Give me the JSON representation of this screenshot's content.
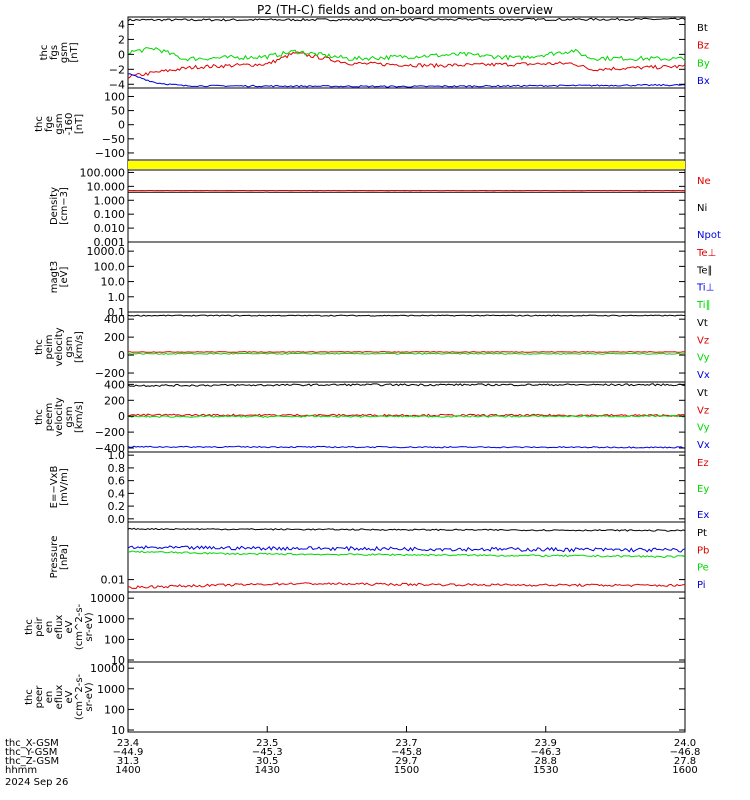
{
  "title": "P2 (TH-C) fields and on-board moments overview",
  "colors": {
    "black": "#000000",
    "red": "#e00000",
    "green": "#00d800",
    "blue": "#0000e0",
    "yellow": "#ffff00"
  },
  "chart_data": [
    {
      "type": "line",
      "ylabel": [
        "thc",
        "fgs",
        "gsm",
        "[nT]"
      ],
      "ylim": [
        -4.5,
        5
      ],
      "ticks": [
        "4",
        "2",
        "0",
        "−2",
        "−4"
      ],
      "tick_values": [
        4,
        2,
        0,
        -2,
        -4
      ],
      "legend": [
        {
          "name": "Bt",
          "color": "black"
        },
        {
          "name": "Bz",
          "color": "red"
        },
        {
          "name": "By",
          "color": "green"
        },
        {
          "name": "Bx",
          "color": "blue"
        }
      ],
      "series": [
        {
          "name": "Bt",
          "color": "black",
          "base": 4.7,
          "noise": 0.15,
          "points": [
            [
              0,
              4.6
            ],
            [
              1,
              4.7
            ]
          ]
        },
        {
          "name": "Bz",
          "color": "red",
          "base": -1.6,
          "noise": 0.25,
          "points": [
            [
              0,
              -3.0
            ],
            [
              0.06,
              -2.3
            ],
            [
              0.12,
              -1.7
            ],
            [
              0.25,
              -1.3
            ],
            [
              0.3,
              0.2
            ],
            [
              0.4,
              -1.2
            ],
            [
              0.55,
              -1.5
            ],
            [
              0.8,
              -1.2
            ],
            [
              0.83,
              -2.0
            ],
            [
              1,
              -1.6
            ]
          ]
        },
        {
          "name": "By",
          "color": "green",
          "base": -0.5,
          "noise": 0.3,
          "points": [
            [
              0,
              0.3
            ],
            [
              0.05,
              0.8
            ],
            [
              0.1,
              -0.6
            ],
            [
              0.25,
              -0.3
            ],
            [
              0.3,
              0.4
            ],
            [
              0.4,
              -0.6
            ],
            [
              0.6,
              0.0
            ],
            [
              0.7,
              -0.5
            ],
            [
              0.8,
              0.5
            ],
            [
              0.83,
              -0.5
            ],
            [
              1,
              -0.6
            ]
          ]
        },
        {
          "name": "Bx",
          "color": "blue",
          "base": -4.1,
          "noise": 0.1,
          "points": [
            [
              0,
              -2.6
            ],
            [
              0.05,
              -3.8
            ],
            [
              0.1,
              -4.2
            ],
            [
              0.5,
              -4.3
            ],
            [
              1,
              -4.1
            ]
          ]
        }
      ]
    },
    {
      "type": "line",
      "ylabel": [
        "thc",
        "fge",
        "gsm",
        "-160",
        "[nT]"
      ],
      "ylim": [
        -125,
        130
      ],
      "ticks": [
        "100",
        "50",
        "0",
        "−50",
        "−100"
      ],
      "tick_values": [
        100,
        50,
        0,
        -50,
        -100
      ],
      "legend": [],
      "series": []
    },
    {
      "type": "area",
      "ylabel": [],
      "ylim": [
        0,
        1
      ],
      "ticks": [],
      "tick_values": [],
      "legend": [],
      "series": [
        {
          "name": "bar",
          "color": "yellow",
          "base": 0.5,
          "noise": 0,
          "points": [
            [
              0,
              0.5
            ],
            [
              1,
              0.5
            ]
          ]
        }
      ]
    },
    {
      "type": "line",
      "log": true,
      "ylabel": [
        "Density",
        "[cm−3]"
      ],
      "ylim": [
        0.001,
        150
      ],
      "ticks": [
        "100.000",
        "10.000",
        "1.000",
        "0.100",
        "0.010",
        "0.001"
      ],
      "tick_values": [
        100,
        10,
        1,
        0.1,
        0.01,
        0.001
      ],
      "legend": [
        {
          "name": "Ne",
          "color": "red"
        },
        {
          "name": "Ni",
          "color": "black"
        },
        {
          "name": "Npot",
          "color": "blue"
        }
      ],
      "series": [
        {
          "name": "Ne",
          "color": "red",
          "base": 5.0,
          "noise": 0.05,
          "points": [
            [
              0,
              5.0
            ],
            [
              1,
              5.0
            ]
          ]
        },
        {
          "name": "Ni",
          "color": "black",
          "base": 3.8,
          "noise": 0.04,
          "points": [
            [
              0,
              3.8
            ],
            [
              1,
              3.8
            ]
          ]
        }
      ]
    },
    {
      "type": "line",
      "log": true,
      "ylabel": [
        "magt3",
        "[eV]"
      ],
      "ylim": [
        0.1,
        4000
      ],
      "ticks": [
        "1000.0",
        "100.0",
        "10.0",
        "1.0",
        "0.1"
      ],
      "tick_values": [
        1000,
        100,
        10,
        1,
        0.1
      ],
      "legend": [
        {
          "name": "Te⊥",
          "color": "red"
        },
        {
          "name": "Te∥",
          "color": "black"
        },
        {
          "name": "Ti⊥",
          "color": "blue"
        },
        {
          "name": "Ti∥",
          "color": "green"
        }
      ],
      "series": []
    },
    {
      "type": "line",
      "ylabel": [
        "thc",
        "peim",
        "velocity",
        "gsm",
        "[km/s]"
      ],
      "ylim": [
        -300,
        480
      ],
      "ticks": [
        "400",
        "200",
        "0",
        "−200"
      ],
      "tick_values": [
        400,
        200,
        0,
        -200
      ],
      "legend": [
        {
          "name": "Vt",
          "color": "black"
        },
        {
          "name": "Vz",
          "color": "red"
        },
        {
          "name": "Vy",
          "color": "green"
        },
        {
          "name": "Vx",
          "color": "blue"
        }
      ],
      "series": [
        {
          "name": "Vt",
          "color": "black",
          "base": 440,
          "noise": 6,
          "points": [
            [
              0,
              440
            ],
            [
              1,
              440
            ]
          ]
        },
        {
          "name": "Vz",
          "color": "red",
          "base": 35,
          "noise": 4,
          "points": [
            [
              0,
              35
            ],
            [
              1,
              35
            ]
          ]
        },
        {
          "name": "Vy",
          "color": "green",
          "base": 15,
          "noise": 6,
          "points": [
            [
              0,
              15
            ],
            [
              1,
              15
            ]
          ]
        }
      ]
    },
    {
      "type": "line",
      "ylabel": [
        "thc",
        "peem",
        "velocity",
        "gsm",
        "[km/s]"
      ],
      "ylim": [
        -450,
        430
      ],
      "ticks": [
        "400",
        "200",
        "0",
        "−200",
        "−400"
      ],
      "tick_values": [
        400,
        200,
        0,
        -200,
        -400
      ],
      "legend": [
        {
          "name": "Vt",
          "color": "black"
        },
        {
          "name": "Vz",
          "color": "red"
        },
        {
          "name": "Vy",
          "color": "green"
        },
        {
          "name": "Vx",
          "color": "blue"
        }
      ],
      "series": [
        {
          "name": "Vt",
          "color": "black",
          "base": 390,
          "noise": 12,
          "points": [
            [
              0,
              385
            ],
            [
              0.4,
              395
            ],
            [
              1,
              395
            ]
          ]
        },
        {
          "name": "Vx",
          "color": "blue",
          "base": -390,
          "noise": 8,
          "points": [
            [
              0,
              -385
            ],
            [
              1,
              -392
            ]
          ]
        },
        {
          "name": "Vz",
          "color": "red",
          "base": 15,
          "noise": 12,
          "points": [
            [
              0,
              15
            ],
            [
              1,
              10
            ]
          ]
        },
        {
          "name": "Vy",
          "color": "green",
          "base": 0,
          "noise": 10,
          "points": [
            [
              0,
              -5
            ],
            [
              1,
              0
            ]
          ]
        }
      ]
    },
    {
      "type": "line",
      "ylabel": [
        "E=−VxB",
        "[mV/m]"
      ],
      "ylim": [
        -0.05,
        1.05
      ],
      "ticks": [
        "1.0",
        "0.8",
        "0.6",
        "0.4",
        "0.2",
        "0.0"
      ],
      "tick_values": [
        1.0,
        0.8,
        0.6,
        0.4,
        0.2,
        0.0
      ],
      "legend": [
        {
          "name": "Ez",
          "color": "red"
        },
        {
          "name": "Ey",
          "color": "green"
        },
        {
          "name": "Ex",
          "color": "blue"
        }
      ],
      "series": []
    },
    {
      "type": "line",
      "log": true,
      "ylabel": [
        "Pressure",
        "[nPa]"
      ],
      "ylim": [
        0.005,
        0.25
      ],
      "ticks": [
        "0.01"
      ],
      "tick_values": [
        0.01
      ],
      "legend": [
        {
          "name": "Pt",
          "color": "black"
        },
        {
          "name": "Pb",
          "color": "red"
        },
        {
          "name": "Pe",
          "color": "green"
        },
        {
          "name": "Pi",
          "color": "blue"
        }
      ],
      "series": [
        {
          "name": "Pt",
          "color": "black",
          "base": 0.16,
          "noise": 0.006,
          "points": [
            [
              0,
              0.17
            ],
            [
              1,
              0.155
            ]
          ]
        },
        {
          "name": "Pi",
          "color": "blue",
          "base": 0.055,
          "noise": 0.006,
          "points": [
            [
              0,
              0.06
            ],
            [
              1,
              0.052
            ]
          ]
        },
        {
          "name": "Pe",
          "color": "green",
          "base": 0.043,
          "noise": 0.002,
          "points": [
            [
              0,
              0.048
            ],
            [
              0.2,
              0.042
            ],
            [
              0.5,
              0.04
            ],
            [
              1,
              0.036
            ]
          ]
        },
        {
          "name": "Pb",
          "color": "red",
          "base": 0.0075,
          "noise": 0.0005,
          "points": [
            [
              0,
              0.0065
            ],
            [
              0.3,
              0.008
            ],
            [
              0.6,
              0.0075
            ],
            [
              1,
              0.0072
            ]
          ]
        }
      ]
    },
    {
      "type": "line",
      "log": true,
      "ylabel": [
        "thc",
        "peir",
        "en",
        "eflux",
        "eV",
        "(cm^2-s-",
        "sr-eV)"
      ],
      "ylim": [
        8,
        20000
      ],
      "ticks": [
        "10000",
        "1000",
        "100",
        "10"
      ],
      "tick_values": [
        10000,
        1000,
        100,
        10
      ],
      "legend": [],
      "series": []
    },
    {
      "type": "line",
      "log": true,
      "ylabel": [
        "thc",
        "peer",
        "en",
        "eflux",
        "eV",
        "(cm^2-s-",
        "sr-eV)"
      ],
      "ylim": [
        8,
        20000
      ],
      "ticks": [
        "10000",
        "1000",
        "100",
        "10"
      ],
      "tick_values": [
        10000,
        1000,
        100,
        10
      ],
      "legend": [],
      "series": []
    }
  ],
  "x_axis": {
    "rows": [
      {
        "label": "thc_X-GSM",
        "values": [
          "23.4",
          "23.5",
          "23.7",
          "23.9",
          "24.0"
        ]
      },
      {
        "label": "thc_Y-GSM",
        "values": [
          "−44.9",
          "−45.3",
          "−45.8",
          "−46.3",
          "−46.8"
        ]
      },
      {
        "label": "thc_Z-GSM",
        "values": [
          "31.3",
          "30.5",
          "29.7",
          "28.8",
          "27.8"
        ]
      },
      {
        "label": "hhmm",
        "values": [
          "1400",
          "1430",
          "1500",
          "1530",
          "1600"
        ]
      }
    ],
    "date": "2024 Sep 26",
    "tick_fractions": [
      0,
      0.25,
      0.5,
      0.75,
      1
    ]
  }
}
